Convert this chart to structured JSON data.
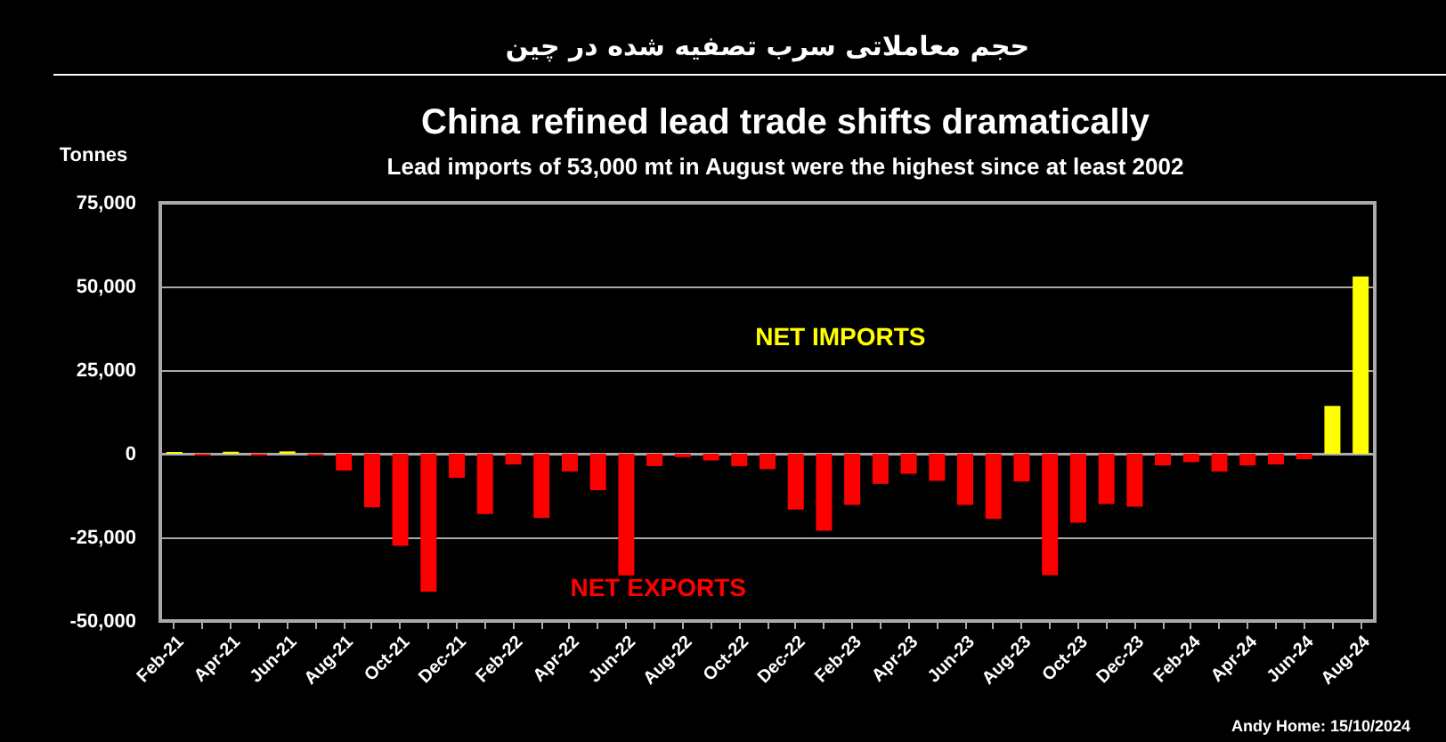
{
  "chart_data": {
    "type": "bar",
    "title": "China refined lead trade shifts dramatically",
    "subtitle": "Lead imports of 53,000 mt in August were the highest since at least 2002",
    "ylabel": "Tonnes",
    "annotations": [
      "حجم معاملاتی سرب تصفیه شده در چین",
      "NET IMPORTS",
      "NET EXPORTS",
      "Andy Home: 15/10/2024"
    ],
    "categories": [
      "Feb-21",
      null,
      "Apr-21",
      null,
      "Jun-21",
      null,
      "Aug-21",
      null,
      "Oct-21",
      null,
      "Dec-21",
      null,
      "Feb-22",
      null,
      "Apr-22",
      null,
      "Jun-22",
      null,
      "Aug-22",
      null,
      "Oct-22",
      null,
      "Dec-22",
      null,
      "Feb-23",
      null,
      "Apr-23",
      null,
      "Jun-23",
      null,
      "Aug-23",
      null,
      "Oct-23",
      null,
      "Dec-23",
      null,
      "Feb-24",
      null,
      "Apr-24",
      null,
      "Jun-24",
      null,
      "Aug-24"
    ],
    "values": [
      500,
      -500,
      600,
      -500,
      700,
      -500,
      -5000,
      -16000,
      -27500,
      -41200,
      -7200,
      -18000,
      -3200,
      -19200,
      -5300,
      -10900,
      -36400,
      -3700,
      -1000,
      -2000,
      -3700,
      -4600,
      -16700,
      -23000,
      -15300,
      -9000,
      -6000,
      -8100,
      -15300,
      -19500,
      -8300,
      -36300,
      -20600,
      -15000,
      -15800,
      -3500,
      -2500,
      -5300,
      -3500,
      -3200,
      -1600,
      14300,
      53000
    ],
    "colors": [
      "#ffff00",
      "#ff0000",
      "#ffff00",
      "#ff0000",
      "#ffff00",
      "#ff0000",
      "#ff0000",
      "#ff0000",
      "#ff0000",
      "#ff0000",
      "#ff0000",
      "#ff0000",
      "#ff0000",
      "#ff0000",
      "#ff0000",
      "#ff0000",
      "#ff0000",
      "#ff0000",
      "#ff0000",
      "#ff0000",
      "#ff0000",
      "#ff0000",
      "#ff0000",
      "#ff0000",
      "#ff0000",
      "#ff0000",
      "#ff0000",
      "#ff0000",
      "#ff0000",
      "#ff0000",
      "#ff0000",
      "#ff0000",
      "#ff0000",
      "#ff0000",
      "#ff0000",
      "#ff0000",
      "#ff0000",
      "#ff0000",
      "#ff0000",
      "#ff0000",
      "#ff0000",
      "#ffff00",
      "#ffff00"
    ],
    "ylim": [
      -50000,
      75000
    ],
    "yticks": [
      {
        "value": -50000,
        "label": "-50,000"
      },
      {
        "value": -25000,
        "label": "-25,000"
      },
      0,
      {
        "value": 25000,
        "label": "25,000"
      },
      {
        "value": 50000,
        "label": "50,000"
      },
      {
        "value": 75000,
        "label": "75,000"
      }
    ],
    "grid": "y"
  }
}
